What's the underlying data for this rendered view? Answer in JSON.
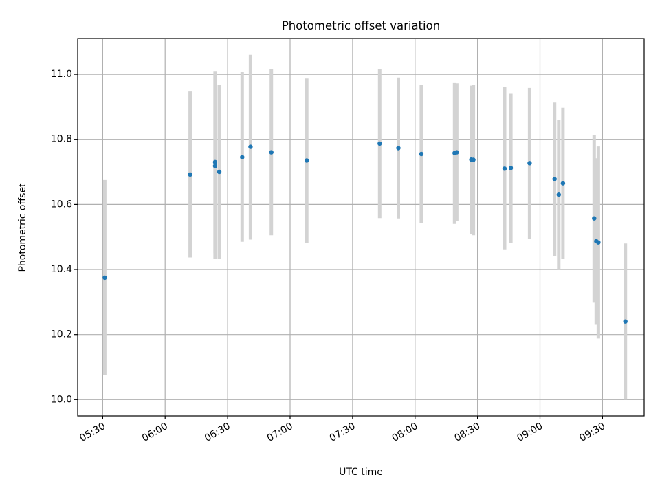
{
  "chart_data": {
    "type": "scatter",
    "title": "Photometric offset variation",
    "xlabel": "UTC time",
    "ylabel": "Photometric offset",
    "xlim": [
      "05:18",
      "09:50"
    ],
    "ylim": [
      9.95,
      11.11
    ],
    "x_ticks": [
      "05:30",
      "06:00",
      "06:30",
      "07:00",
      "07:30",
      "08:00",
      "08:30",
      "09:00",
      "09:30"
    ],
    "y_ticks": [
      "10.0",
      "10.2",
      "10.4",
      "10.6",
      "10.8",
      "11.0"
    ],
    "grid": true,
    "colors": {
      "points": "#1f77b4",
      "errorbars": "#d3d3d3",
      "grid": "#b0b0b0"
    },
    "series": [
      {
        "points": [
          {
            "t": "05:31",
            "y": 10.375,
            "lo": 10.075,
            "hi": 10.675
          },
          {
            "t": "06:12",
            "y": 10.692,
            "lo": 10.437,
            "hi": 10.947
          },
          {
            "t": "06:24",
            "y": 10.73,
            "lo": 10.45,
            "hi": 11.01
          },
          {
            "t": "06:24",
            "y": 10.718,
            "lo": 10.432,
            "hi": 11.0
          },
          {
            "t": "06:26",
            "y": 10.7,
            "lo": 10.432,
            "hi": 10.968
          },
          {
            "t": "06:37",
            "y": 10.745,
            "lo": 10.485,
            "hi": 11.007
          },
          {
            "t": "06:41",
            "y": 10.777,
            "lo": 10.492,
            "hi": 11.06
          },
          {
            "t": "06:51",
            "y": 10.76,
            "lo": 10.505,
            "hi": 11.015
          },
          {
            "t": "07:08",
            "y": 10.735,
            "lo": 10.482,
            "hi": 10.987
          },
          {
            "t": "07:43",
            "y": 10.787,
            "lo": 10.558,
            "hi": 11.017
          },
          {
            "t": "07:52",
            "y": 10.773,
            "lo": 10.557,
            "hi": 10.99
          },
          {
            "t": "08:03",
            "y": 10.755,
            "lo": 10.542,
            "hi": 10.967
          },
          {
            "t": "08:19",
            "y": 10.758,
            "lo": 10.54,
            "hi": 10.975
          },
          {
            "t": "08:20",
            "y": 10.76,
            "lo": 10.55,
            "hi": 10.972
          },
          {
            "t": "08:27",
            "y": 10.738,
            "lo": 10.51,
            "hi": 10.965
          },
          {
            "t": "08:28",
            "y": 10.737,
            "lo": 10.505,
            "hi": 10.968
          },
          {
            "t": "08:43",
            "y": 10.71,
            "lo": 10.462,
            "hi": 10.96
          },
          {
            "t": "08:46",
            "y": 10.712,
            "lo": 10.482,
            "hi": 10.942
          },
          {
            "t": "08:55",
            "y": 10.727,
            "lo": 10.495,
            "hi": 10.958
          },
          {
            "t": "09:07",
            "y": 10.678,
            "lo": 10.442,
            "hi": 10.913
          },
          {
            "t": "09:09",
            "y": 10.63,
            "lo": 10.4,
            "hi": 10.86
          },
          {
            "t": "09:11",
            "y": 10.665,
            "lo": 10.432,
            "hi": 10.897
          },
          {
            "t": "09:26",
            "y": 10.557,
            "lo": 10.3,
            "hi": 10.812
          },
          {
            "t": "09:27",
            "y": 10.487,
            "lo": 10.232,
            "hi": 10.742
          },
          {
            "t": "09:28",
            "y": 10.483,
            "lo": 10.188,
            "hi": 10.778
          },
          {
            "t": "09:41",
            "y": 10.24,
            "lo": 10.0,
            "hi": 10.48
          }
        ]
      }
    ]
  }
}
